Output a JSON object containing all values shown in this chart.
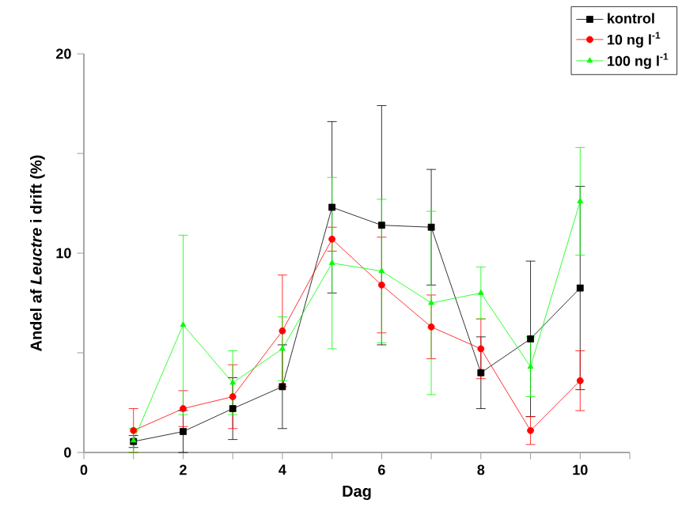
{
  "chart_data": {
    "type": "line",
    "xlabel": "Dag",
    "ylabel": "Andel af *Leuctre* i drift (%)",
    "x": [
      1,
      2,
      3,
      4,
      5,
      6,
      7,
      8,
      9,
      10
    ],
    "xlim": [
      0,
      11
    ],
    "ylim": [
      0,
      20
    ],
    "xticks": [
      0,
      {
        "value": 1,
        "label": null
      },
      2,
      {
        "value": 3,
        "label": null
      },
      4,
      {
        "value": 5,
        "label": null
      },
      6,
      {
        "value": 7,
        "label": null
      },
      8,
      {
        "value": 9,
        "label": null
      },
      10,
      {
        "value": 11,
        "label": null
      }
    ],
    "yticks": [
      0,
      {
        "value": 5,
        "label": null
      },
      10,
      {
        "value": 15,
        "label": null
      },
      20
    ],
    "grid": false,
    "legend": "top right",
    "line_style": "solid",
    "series": [
      {
        "name": "kontrol",
        "color": "#000000",
        "marker": "square",
        "values": [
          0.55,
          1.05,
          2.2,
          3.3,
          12.3,
          11.4,
          11.3,
          4.0,
          5.7,
          8.25
        ],
        "errors": [
          0.3,
          1.05,
          1.55,
          2.1,
          4.3,
          6.0,
          2.9,
          1.8,
          3.9,
          5.1
        ]
      },
      {
        "name": "10 ng l$^{-1}$",
        "color": "#ff0000",
        "marker": "circle",
        "values": [
          1.1,
          2.2,
          2.8,
          6.1,
          10.7,
          8.4,
          6.3,
          5.2,
          1.1,
          3.6
        ],
        "errors": [
          1.1,
          0.9,
          1.6,
          2.8,
          0.6,
          2.4,
          1.6,
          1.5,
          0.7,
          1.5
        ]
      },
      {
        "name": "100 ng l$^{-1}$",
        "color": "#00ff00",
        "marker": "triangle",
        "values": [
          0.6,
          6.4,
          3.5,
          5.2,
          9.5,
          9.1,
          7.5,
          8.0,
          4.3,
          12.6
        ],
        "errors": [
          0.6,
          4.5,
          1.6,
          1.6,
          4.3,
          3.6,
          4.6,
          1.3,
          1.5,
          2.7
        ]
      }
    ]
  }
}
